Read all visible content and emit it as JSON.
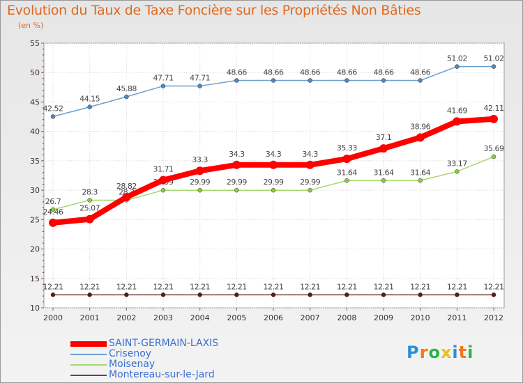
{
  "header": {
    "title": "Evolution du Taux de Taxe Foncière sur les Propriétés Non Bâties",
    "unit": "(en %)"
  },
  "chart_data": {
    "type": "line",
    "title": "Evolution du Taux de Taxe Foncière sur les Propriétés Non Bâties",
    "ylabel": "(en %)",
    "xlabel": "",
    "x": [
      "2000",
      "2001",
      "2002",
      "2003",
      "2004",
      "2005",
      "2006",
      "2007",
      "2008",
      "2009",
      "2010",
      "2011",
      "2012"
    ],
    "ylim": [
      10,
      55
    ],
    "yticks": [
      10,
      15,
      20,
      25,
      30,
      35,
      40,
      45,
      50,
      55
    ],
    "grid": true,
    "legend_position": "bottom-left",
    "series": [
      {
        "name": "Crisenoy",
        "color": "#6e9fcf",
        "marker": "#4a8ac6",
        "values": [
          42.52,
          44.15,
          45.88,
          47.71,
          47.71,
          48.66,
          48.66,
          48.66,
          48.66,
          48.66,
          48.66,
          51.02,
          51.02
        ],
        "labels": [
          "42.52",
          "44.15",
          "45.88",
          "47.71",
          "47.71",
          "48.66",
          "48.66",
          "48.66",
          "48.66",
          "48.66",
          "48.66",
          "51.02",
          "51.02"
        ]
      },
      {
        "name": "Moisenay",
        "color": "#a6d86e",
        "marker": "#8ccb3c",
        "values": [
          26.7,
          28.3,
          28.3,
          29.99,
          29.99,
          29.99,
          29.99,
          29.99,
          31.64,
          31.64,
          31.64,
          33.17,
          35.69
        ],
        "labels": [
          "26.7",
          "28.3",
          "28.3",
          "29.99",
          "29.99",
          "29.99",
          "29.99",
          "29.99",
          "31.64",
          "31.64",
          "31.64",
          "33.17",
          "35.69"
        ]
      },
      {
        "name": "Montereau-sur-le-Jard",
        "color": "#7a3a3a",
        "marker": "#5a1a1a",
        "values": [
          12.21,
          12.21,
          12.21,
          12.21,
          12.21,
          12.21,
          12.21,
          12.21,
          12.21,
          12.21,
          12.21,
          12.21,
          12.21
        ],
        "labels": [
          "12.21",
          "12.21",
          "12.21",
          "12.21",
          "12.21",
          "12.21",
          "12.21",
          "12.21",
          "12.21",
          "12.21",
          "12.21",
          "12.21",
          "12.21"
        ]
      },
      {
        "name": "SAINT-GERMAIN-LAXIS",
        "color": "#ff0000",
        "marker": "#ff0000",
        "bold": true,
        "values": [
          24.46,
          25.07,
          28.82,
          31.71,
          33.3,
          34.3,
          34.3,
          34.3,
          35.33,
          37.1,
          38.96,
          41.69,
          42.11
        ],
        "labels": [
          "24.46",
          "25.07",
          "28.82",
          "31.71",
          "33.3",
          "34.3",
          "34.3",
          "34.3",
          "35.33",
          "37.1",
          "38.96",
          "41.69",
          "42.11"
        ]
      }
    ]
  },
  "legend": {
    "items": [
      {
        "label": "SAINT-GERMAIN-LAXIS",
        "color": "#ff0000",
        "bold": true
      },
      {
        "label": "Crisenoy",
        "color": "#6e9fcf"
      },
      {
        "label": "Moisenay",
        "color": "#a6d86e"
      },
      {
        "label": "Montereau-sur-le-Jard",
        "color": "#7a3a3a"
      }
    ]
  },
  "logo": {
    "letters": [
      "P",
      "r",
      "o",
      "x",
      "i",
      "t",
      "i"
    ],
    "colors": [
      "#2b8fd6",
      "#f07a1a",
      "#2bb34a",
      "#e8c21a",
      "#2b8fd6",
      "#f07a1a",
      "#2bb34a"
    ]
  }
}
